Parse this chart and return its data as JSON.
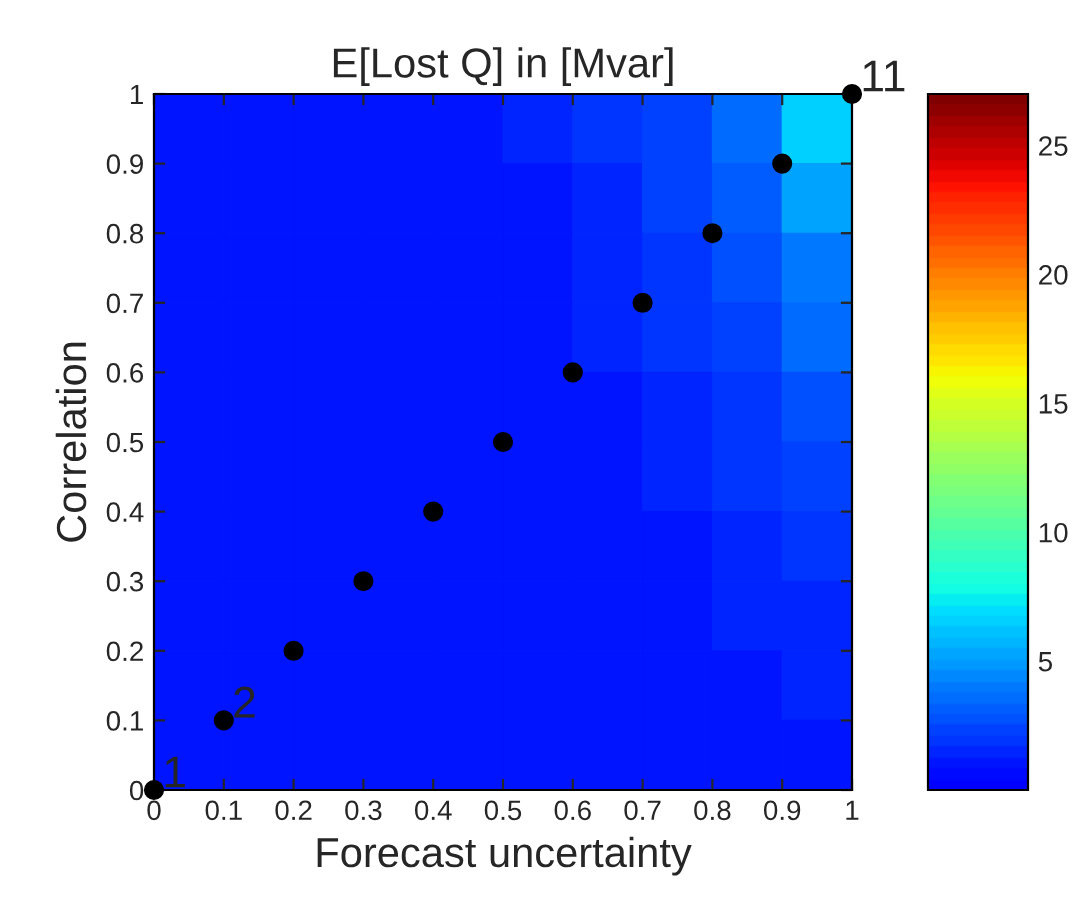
{
  "chart_data": [
    {
      "type": "heatmap",
      "categories": [
        null,
        null,
        null,
        null,
        null,
        null,
        null,
        null,
        null,
        null
      ],
      "y_categories": [
        null,
        null,
        null,
        null,
        null,
        null,
        null,
        null,
        null,
        null
      ],
      "cells": [
        [
          1,
          1,
          1,
          1,
          1,
          1.3,
          1.8,
          2.5,
          3.7,
          6.5
        ],
        [
          1,
          1,
          1,
          1,
          1,
          1.2,
          1.6,
          2.2,
          3.2,
          5.2
        ],
        [
          1,
          1,
          1,
          1,
          1,
          1.1,
          1.4,
          1.9,
          2.7,
          4.2
        ],
        [
          1,
          1,
          1,
          1,
          1,
          1,
          1.3,
          1.7,
          2.3,
          3.4
        ],
        [
          1,
          1,
          1,
          1,
          1,
          1,
          1.1,
          1.4,
          2,
          2.8
        ],
        [
          1,
          1,
          1,
          1,
          1,
          1,
          1,
          1.3,
          1.7,
          2.3
        ],
        [
          1,
          1,
          1,
          1,
          1,
          1,
          1,
          1.1,
          1.5,
          1.9
        ],
        [
          1,
          1,
          1,
          1,
          1,
          1,
          1,
          1,
          1.3,
          1.6
        ],
        [
          1,
          1,
          1,
          1,
          1,
          1,
          1,
          1,
          1.1,
          1.3
        ],
        [
          1,
          1,
          1,
          1,
          1,
          1,
          1,
          1,
          1,
          1.1
        ]
      ],
      "clim": [
        0,
        27
      ],
      "cticks": [
        5,
        10,
        15,
        20,
        25
      ]
    },
    {
      "type": "scatter",
      "title": "E[Lost Q] in [Mvar]",
      "xlabel": "Forecast uncertainty",
      "ylabel": "Correlation",
      "xlim": [
        0,
        1
      ],
      "ylim": [
        0,
        1
      ],
      "xticks": [
        0,
        0.1,
        0.2,
        0.3,
        0.4,
        0.5,
        0.6,
        0.7,
        0.8,
        0.9,
        1
      ],
      "yticks": [
        0,
        0.1,
        0.2,
        0.3,
        0.4,
        0.5,
        0.6,
        0.7,
        0.8,
        0.9,
        1
      ],
      "series": [
        {
          "color": "#000000",
          "x": [
            0,
            0.1,
            0.2,
            0.3,
            0.4,
            0.5,
            0.6,
            0.7,
            0.8,
            0.9,
            1
          ],
          "values": [
            0,
            0.1,
            0.2,
            0.3,
            0.4,
            0.5,
            0.6,
            0.7,
            0.8,
            0.9,
            1
          ]
        }
      ],
      "annotations": [
        {
          "text": "1",
          "x": 0,
          "y": 0
        },
        {
          "text": "2",
          "x": 0.1,
          "y": 0.1
        },
        {
          "text": "11",
          "x": 1,
          "y": 1
        }
      ]
    }
  ]
}
